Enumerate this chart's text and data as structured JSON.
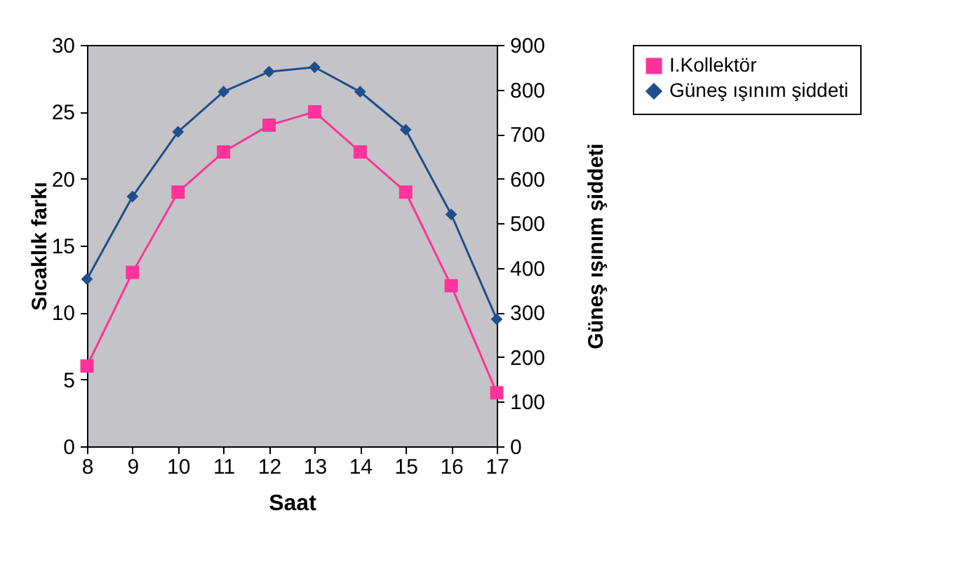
{
  "chart_data": {
    "type": "line",
    "xlabel": "Saat",
    "ylabel": "Sıcaklık farkı",
    "y2label": "Güneş ışınım şiddeti",
    "categories": [
      "8",
      "9",
      "10",
      "11",
      "12",
      "13",
      "14",
      "15",
      "16",
      "17"
    ],
    "series": [
      {
        "name": "I.Kollektör",
        "color": "#ff3399",
        "marker": "square",
        "values": [
          6,
          13,
          19,
          22,
          24,
          25,
          22,
          19,
          12,
          4
        ]
      },
      {
        "name": "Güneş ışınım şiddeti",
        "color": "#1f4e8c",
        "marker": "diamond",
        "axis": "y2",
        "values": [
          375,
          560,
          705,
          795,
          840,
          850,
          795,
          710,
          520,
          285
        ]
      }
    ],
    "ylim": [
      0,
      30
    ],
    "yticks": [
      0,
      5,
      10,
      15,
      20,
      25,
      30
    ],
    "y2lim": [
      0,
      900
    ],
    "y2ticks": [
      0,
      100,
      200,
      300,
      400,
      500,
      600,
      700,
      800,
      900
    ],
    "grid": false,
    "legend": "right",
    "line_style": "solid"
  }
}
